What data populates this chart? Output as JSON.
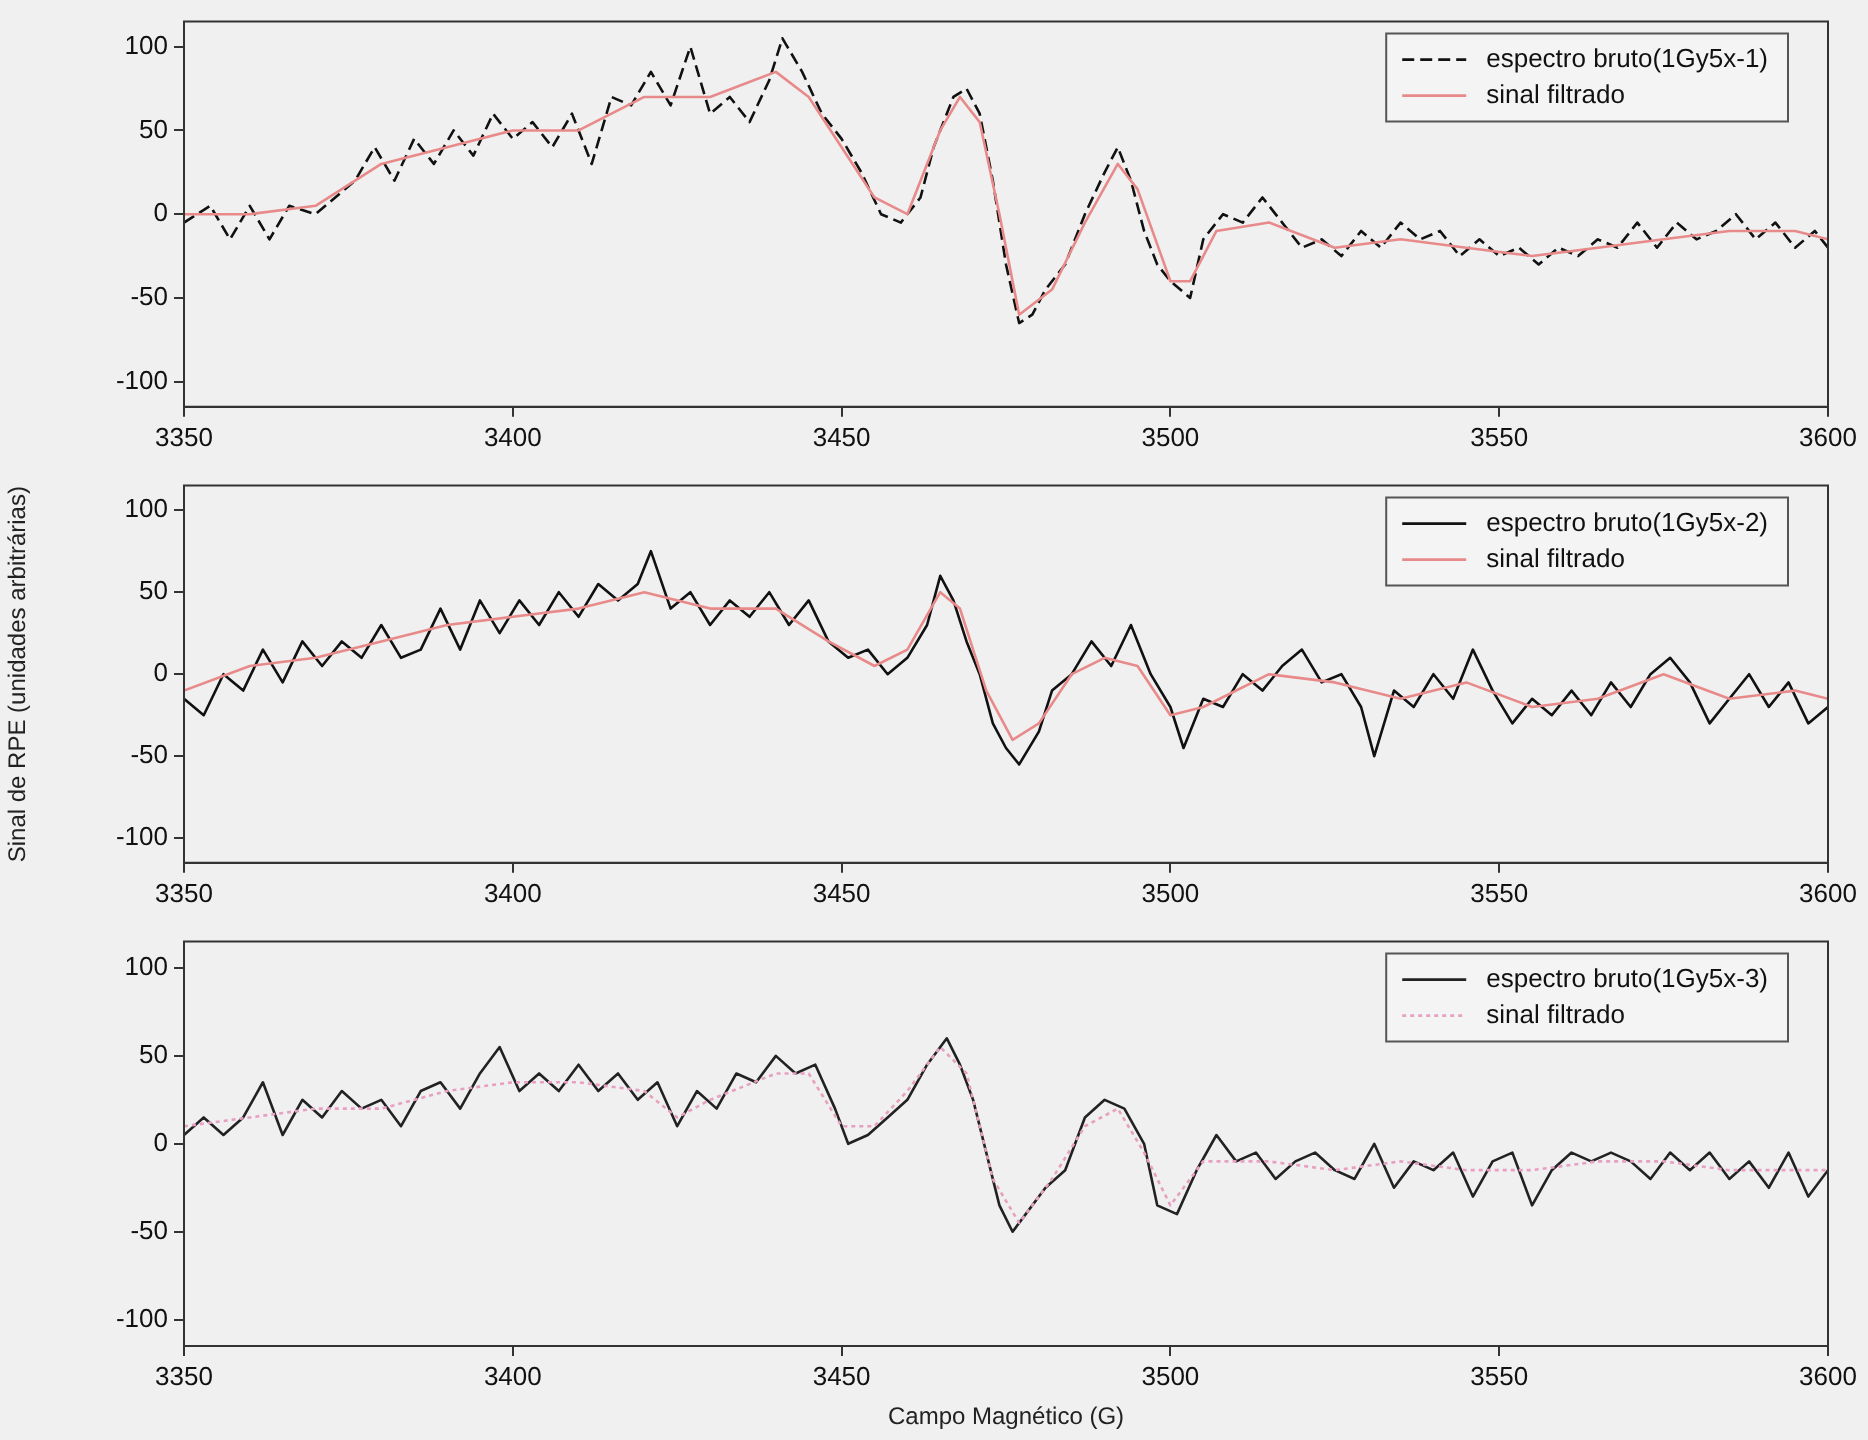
{
  "chart_data": [
    {
      "type": "line",
      "xlim": [
        3350,
        3600
      ],
      "xticks": [
        3350,
        3400,
        3450,
        3500,
        3550,
        3600
      ],
      "ylim": [
        -115,
        115
      ],
      "yticks": [
        -100,
        -50,
        0,
        50,
        100
      ],
      "grid": false,
      "legend": "top right",
      "marker": "none",
      "series": [
        {
          "name": "espectro bruto(1Gy5x-1)",
          "color": "#111111",
          "line_style": "dashed",
          "x": [
            3350,
            3354,
            3357,
            3360,
            3363,
            3366,
            3370,
            3373,
            3376,
            3379,
            3382,
            3385,
            3388,
            3391,
            3394,
            3397,
            3400,
            3403,
            3406,
            3409,
            3412,
            3415,
            3418,
            3421,
            3424,
            3427,
            3430,
            3433,
            3436,
            3439,
            3441,
            3444,
            3447,
            3450,
            3453,
            3456,
            3459,
            3462,
            3464,
            3467,
            3469,
            3471,
            3473,
            3475,
            3477,
            3479,
            3481,
            3484,
            3487,
            3490,
            3492,
            3494,
            3496,
            3498,
            3500,
            3503,
            3505,
            3508,
            3511,
            3514,
            3517,
            3520,
            3523,
            3526,
            3529,
            3532,
            3535,
            3538,
            3541,
            3544,
            3547,
            3550,
            3553,
            3556,
            3559,
            3562,
            3565,
            3568,
            3571,
            3574,
            3577,
            3580,
            3583,
            3586,
            3589,
            3592,
            3595,
            3598,
            3600
          ],
          "values": [
            -5,
            5,
            -15,
            5,
            -15,
            5,
            0,
            10,
            20,
            40,
            20,
            45,
            30,
            50,
            35,
            60,
            45,
            55,
            40,
            60,
            30,
            70,
            65,
            85,
            65,
            100,
            60,
            70,
            55,
            80,
            105,
            85,
            60,
            45,
            25,
            0,
            -5,
            10,
            40,
            70,
            75,
            60,
            20,
            -30,
            -65,
            -60,
            -45,
            -30,
            0,
            25,
            40,
            20,
            -10,
            -30,
            -40,
            -50,
            -15,
            0,
            -5,
            10,
            -5,
            -20,
            -15,
            -25,
            -10,
            -20,
            -5,
            -15,
            -10,
            -25,
            -15,
            -25,
            -20,
            -30,
            -20,
            -25,
            -15,
            -20,
            -5,
            -20,
            -5,
            -15,
            -10,
            0,
            -15,
            -5,
            -20,
            -10,
            -20
          ]
        },
        {
          "name": "sinal filtrado",
          "color": "#e88a8a",
          "line_style": "solid",
          "x": [
            3350,
            3360,
            3370,
            3380,
            3390,
            3400,
            3410,
            3420,
            3430,
            3440,
            3445,
            3450,
            3455,
            3460,
            3465,
            3468,
            3471,
            3474,
            3477,
            3482,
            3487,
            3492,
            3495,
            3500,
            3503,
            3507,
            3515,
            3525,
            3535,
            3545,
            3555,
            3565,
            3575,
            3585,
            3595,
            3600
          ],
          "values": [
            0,
            0,
            5,
            30,
            40,
            50,
            50,
            70,
            70,
            85,
            70,
            40,
            10,
            0,
            50,
            70,
            55,
            0,
            -60,
            -45,
            -5,
            30,
            15,
            -40,
            -40,
            -10,
            -5,
            -20,
            -15,
            -20,
            -25,
            -20,
            -15,
            -10,
            -10,
            -15
          ]
        }
      ]
    },
    {
      "type": "line",
      "ylabel": "Sinal de RPE (unidades arbitrárias)",
      "xlim": [
        3350,
        3600
      ],
      "xticks": [
        3350,
        3400,
        3450,
        3500,
        3550,
        3600
      ],
      "ylim": [
        -115,
        115
      ],
      "yticks": [
        -100,
        -50,
        0,
        50,
        100
      ],
      "grid": false,
      "legend": "top right",
      "marker": "none",
      "series": [
        {
          "name": "espectro bruto(1Gy5x-2)",
          "color": "#111111",
          "line_style": "solid",
          "x": [
            3350,
            3353,
            3356,
            3359,
            3362,
            3365,
            3368,
            3371,
            3374,
            3377,
            3380,
            3383,
            3386,
            3389,
            3392,
            3395,
            3398,
            3401,
            3404,
            3407,
            3410,
            3413,
            3416,
            3419,
            3421,
            3424,
            3427,
            3430,
            3433,
            3436,
            3439,
            3442,
            3445,
            3448,
            3451,
            3454,
            3457,
            3460,
            3463,
            3465,
            3467,
            3469,
            3471,
            3473,
            3475,
            3477,
            3480,
            3482,
            3485,
            3488,
            3491,
            3494,
            3497,
            3500,
            3502,
            3505,
            3508,
            3511,
            3514,
            3517,
            3520,
            3523,
            3526,
            3529,
            3531,
            3534,
            3537,
            3540,
            3543,
            3546,
            3549,
            3552,
            3555,
            3558,
            3561,
            3564,
            3567,
            3570,
            3573,
            3576,
            3579,
            3582,
            3585,
            3588,
            3591,
            3594,
            3597,
            3600
          ],
          "values": [
            -15,
            -25,
            0,
            -10,
            15,
            -5,
            20,
            5,
            20,
            10,
            30,
            10,
            15,
            40,
            15,
            45,
            25,
            45,
            30,
            50,
            35,
            55,
            45,
            55,
            75,
            40,
            50,
            30,
            45,
            35,
            50,
            30,
            45,
            20,
            10,
            15,
            0,
            10,
            30,
            60,
            45,
            20,
            0,
            -30,
            -45,
            -55,
            -35,
            -10,
            0,
            20,
            5,
            30,
            0,
            -20,
            -45,
            -15,
            -20,
            0,
            -10,
            5,
            15,
            -5,
            0,
            -20,
            -50,
            -10,
            -20,
            0,
            -15,
            15,
            -10,
            -30,
            -15,
            -25,
            -10,
            -25,
            -5,
            -20,
            0,
            10,
            -5,
            -30,
            -15,
            0,
            -20,
            -5,
            -30,
            -20
          ]
        },
        {
          "name": "sinal filtrado",
          "color": "#e88a8a",
          "line_style": "solid",
          "x": [
            3350,
            3360,
            3370,
            3380,
            3390,
            3400,
            3410,
            3420,
            3430,
            3440,
            3448,
            3455,
            3460,
            3465,
            3468,
            3472,
            3476,
            3480,
            3485,
            3490,
            3495,
            3500,
            3505,
            3515,
            3525,
            3535,
            3545,
            3555,
            3565,
            3575,
            3585,
            3595,
            3600
          ],
          "values": [
            -10,
            5,
            10,
            20,
            30,
            35,
            40,
            50,
            40,
            40,
            20,
            5,
            15,
            50,
            40,
            -10,
            -40,
            -30,
            0,
            10,
            5,
            -25,
            -20,
            0,
            -5,
            -15,
            -5,
            -20,
            -15,
            0,
            -15,
            -10,
            -15
          ]
        }
      ]
    },
    {
      "type": "line",
      "xlabel": "Campo Magnético (G)",
      "xlim": [
        3350,
        3600
      ],
      "xticks": [
        3350,
        3400,
        3450,
        3500,
        3550,
        3600
      ],
      "ylim": [
        -115,
        115
      ],
      "yticks": [
        -100,
        -50,
        0,
        50,
        100
      ],
      "grid": false,
      "legend": "top right",
      "marker": "none",
      "series": [
        {
          "name": "espectro bruto(1Gy5x-3)",
          "color": "#222222",
          "line_style": "solid",
          "x": [
            3350,
            3353,
            3356,
            3359,
            3362,
            3365,
            3368,
            3371,
            3374,
            3377,
            3380,
            3383,
            3386,
            3389,
            3392,
            3395,
            3398,
            3401,
            3404,
            3407,
            3410,
            3413,
            3416,
            3419,
            3422,
            3425,
            3428,
            3431,
            3434,
            3437,
            3440,
            3443,
            3446,
            3449,
            3451,
            3454,
            3457,
            3460,
            3463,
            3466,
            3468,
            3470,
            3472,
            3474,
            3476,
            3478,
            3481,
            3484,
            3487,
            3490,
            3493,
            3496,
            3498,
            3501,
            3504,
            3507,
            3510,
            3513,
            3516,
            3519,
            3522,
            3525,
            3528,
            3531,
            3534,
            3537,
            3540,
            3543,
            3546,
            3549,
            3552,
            3555,
            3558,
            3561,
            3564,
            3567,
            3570,
            3573,
            3576,
            3579,
            3582,
            3585,
            3588,
            3591,
            3594,
            3597,
            3600
          ],
          "values": [
            5,
            15,
            5,
            15,
            35,
            5,
            25,
            15,
            30,
            20,
            25,
            10,
            30,
            35,
            20,
            40,
            55,
            30,
            40,
            30,
            45,
            30,
            40,
            25,
            35,
            10,
            30,
            20,
            40,
            35,
            50,
            40,
            45,
            20,
            0,
            5,
            15,
            25,
            45,
            60,
            45,
            25,
            -5,
            -35,
            -50,
            -40,
            -25,
            -15,
            15,
            25,
            20,
            0,
            -35,
            -40,
            -15,
            5,
            -10,
            -5,
            -20,
            -10,
            -5,
            -15,
            -20,
            0,
            -25,
            -10,
            -15,
            -5,
            -30,
            -10,
            -5,
            -35,
            -15,
            -5,
            -10,
            -5,
            -10,
            -20,
            -5,
            -15,
            -5,
            -20,
            -10,
            -25,
            -5,
            -30,
            -15
          ]
        },
        {
          "name": "sinal filtrado",
          "color": "#e8a0c0",
          "line_style": "dotted",
          "x": [
            3350,
            3360,
            3370,
            3380,
            3390,
            3400,
            3410,
            3420,
            3425,
            3430,
            3440,
            3445,
            3450,
            3455,
            3460,
            3465,
            3469,
            3473,
            3477,
            3482,
            3487,
            3492,
            3496,
            3500,
            3505,
            3515,
            3525,
            3535,
            3545,
            3555,
            3565,
            3575,
            3585,
            3595,
            3600
          ],
          "values": [
            10,
            15,
            20,
            20,
            30,
            35,
            35,
            30,
            15,
            25,
            40,
            40,
            10,
            10,
            30,
            55,
            40,
            -20,
            -45,
            -20,
            10,
            20,
            -5,
            -35,
            -10,
            -10,
            -15,
            -10,
            -15,
            -15,
            -10,
            -10,
            -15,
            -15,
            -15
          ]
        }
      ]
    }
  ]
}
